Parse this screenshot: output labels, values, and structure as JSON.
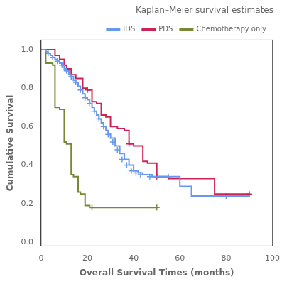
{
  "chart_data": {
    "type": "step",
    "title": "Kaplan–Meier survival estimates",
    "x_label": "Overall Survival Times (months)",
    "y_label": "Cumulative Survival",
    "xlim": [
      0,
      100
    ],
    "ylim": [
      -0.02,
      1.05
    ],
    "xticks": [
      0,
      20,
      40,
      60,
      80,
      100
    ],
    "yticks": [
      {
        "value": 0.0,
        "label": "0.0"
      },
      0.2,
      0.4,
      0.6,
      0.8,
      {
        "value": 1.0,
        "label": "1.0"
      }
    ],
    "grid": false,
    "legend": "upper right",
    "series": [
      {
        "name": "IDS",
        "color": "#6699EE",
        "x": [
          0,
          1,
          2,
          3,
          4,
          5,
          6,
          7,
          8,
          9,
          10,
          11,
          12,
          13,
          14,
          15,
          16,
          17,
          18,
          19,
          20,
          21,
          22,
          23,
          24,
          25,
          26,
          27,
          28,
          29,
          30,
          32,
          34,
          36,
          38,
          40,
          42,
          44,
          46,
          48,
          55,
          60,
          65,
          70,
          75,
          80,
          85,
          90
        ],
        "values": [
          1.0,
          1.0,
          0.99,
          0.98,
          0.97,
          0.96,
          0.95,
          0.94,
          0.93,
          0.92,
          0.9,
          0.89,
          0.87,
          0.86,
          0.84,
          0.83,
          0.81,
          0.79,
          0.77,
          0.75,
          0.74,
          0.72,
          0.7,
          0.68,
          0.66,
          0.64,
          0.62,
          0.6,
          0.58,
          0.56,
          0.54,
          0.5,
          0.46,
          0.43,
          0.4,
          0.37,
          0.36,
          0.35,
          0.35,
          0.34,
          0.34,
          0.29,
          0.24,
          0.24,
          0.24,
          0.24,
          0.24,
          0.24
        ],
        "censored_x": [
          3,
          5,
          7,
          9,
          11,
          13,
          15,
          17,
          19,
          21,
          23,
          25,
          27,
          29,
          31,
          33,
          35,
          37,
          39,
          41,
          43,
          47,
          55,
          80
        ],
        "censored_values": [
          0.98,
          0.96,
          0.94,
          0.92,
          0.89,
          0.86,
          0.83,
          0.79,
          0.75,
          0.72,
          0.68,
          0.64,
          0.6,
          0.56,
          0.52,
          0.48,
          0.43,
          0.4,
          0.37,
          0.36,
          0.35,
          0.34,
          0.34,
          0.24
        ]
      },
      {
        "name": "PDS",
        "color": "#CC2255",
        "x": [
          0,
          4,
          6,
          8,
          10,
          11,
          13,
          15,
          18,
          20,
          22,
          24,
          26,
          28,
          30,
          33,
          36,
          38,
          40,
          44,
          46,
          50,
          55,
          60,
          65,
          75,
          80,
          90
        ],
        "values": [
          1.0,
          1.0,
          0.97,
          0.95,
          0.92,
          0.9,
          0.87,
          0.85,
          0.8,
          0.79,
          0.73,
          0.72,
          0.66,
          0.65,
          0.6,
          0.59,
          0.58,
          0.51,
          0.5,
          0.42,
          0.41,
          0.34,
          0.33,
          0.33,
          0.33,
          0.25,
          0.25,
          0.25
        ],
        "censored_x": [
          10,
          20,
          38,
          50,
          90
        ],
        "censored_values": [
          0.92,
          0.79,
          0.51,
          0.34,
          0.25
        ]
      },
      {
        "name": "Chemotherapy only",
        "color": "#778833",
        "x": [
          0,
          2,
          5,
          6,
          8,
          10,
          11,
          13,
          14,
          16,
          17,
          19,
          21,
          22,
          25,
          30,
          50
        ],
        "values": [
          1.0,
          0.93,
          0.92,
          0.7,
          0.69,
          0.52,
          0.51,
          0.35,
          0.34,
          0.26,
          0.25,
          0.19,
          0.18,
          0.18,
          0.18,
          0.18,
          0.18
        ],
        "censored_x": [
          22,
          50
        ],
        "censored_values": [
          0.18,
          0.18
        ]
      }
    ]
  }
}
